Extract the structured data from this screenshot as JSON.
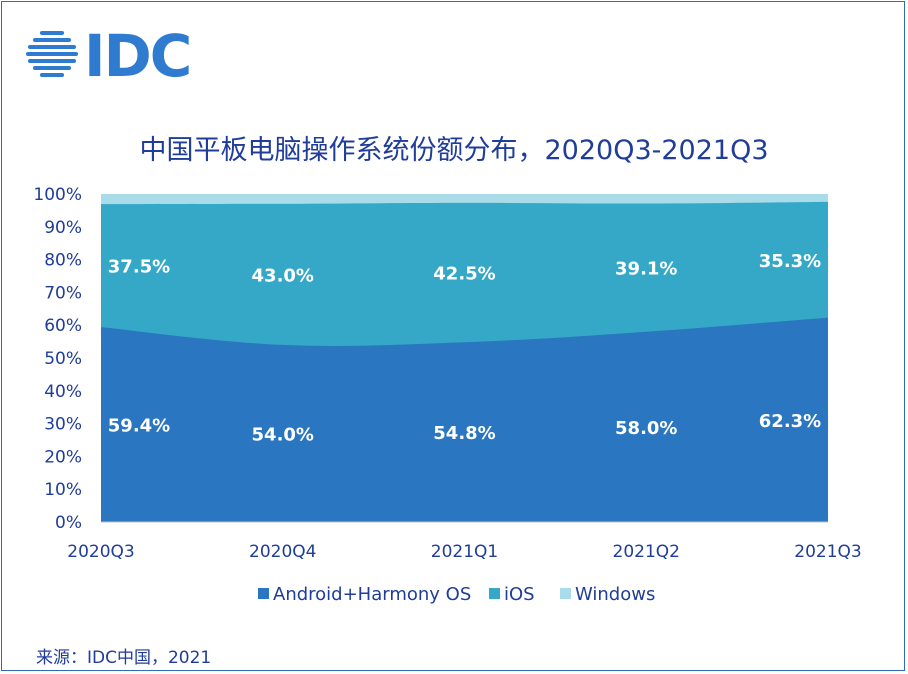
{
  "brand": {
    "logo_text": "IDC",
    "color": "#2e7bd0"
  },
  "source": "来源：IDC中国，2021",
  "colors": {
    "android": "#2a76c0",
    "ios": "#35a8c8",
    "windows": "#a9dbe8",
    "text": "#1f3d99",
    "frame": "#2e6db4"
  },
  "chart_data": {
    "type": "area",
    "stacked": true,
    "title": "中国平板电脑操作系统份额分布，2020Q3-2021Q3",
    "categories": [
      "2020Q3",
      "2020Q4",
      "2021Q1",
      "2021Q2",
      "2021Q3"
    ],
    "y_ticks": [
      "0%",
      "10%",
      "20%",
      "30%",
      "40%",
      "50%",
      "60%",
      "70%",
      "80%",
      "90%",
      "100%"
    ],
    "ylim": [
      0,
      100
    ],
    "legend_position": "bottom",
    "series": [
      {
        "name": "Android+Harmony OS",
        "values": [
          59.4,
          54.0,
          54.8,
          58.0,
          62.3
        ],
        "labels": [
          "59.4%",
          "54.0%",
          "54.8%",
          "58.0%",
          "62.3%"
        ]
      },
      {
        "name": "iOS",
        "values": [
          37.5,
          43.0,
          42.5,
          39.1,
          35.3
        ],
        "labels": [
          "37.5%",
          "43.0%",
          "42.5%",
          "39.1%",
          "35.3%"
        ]
      },
      {
        "name": "Windows",
        "values": [
          3.1,
          3.0,
          2.7,
          2.9,
          2.4
        ]
      }
    ]
  }
}
